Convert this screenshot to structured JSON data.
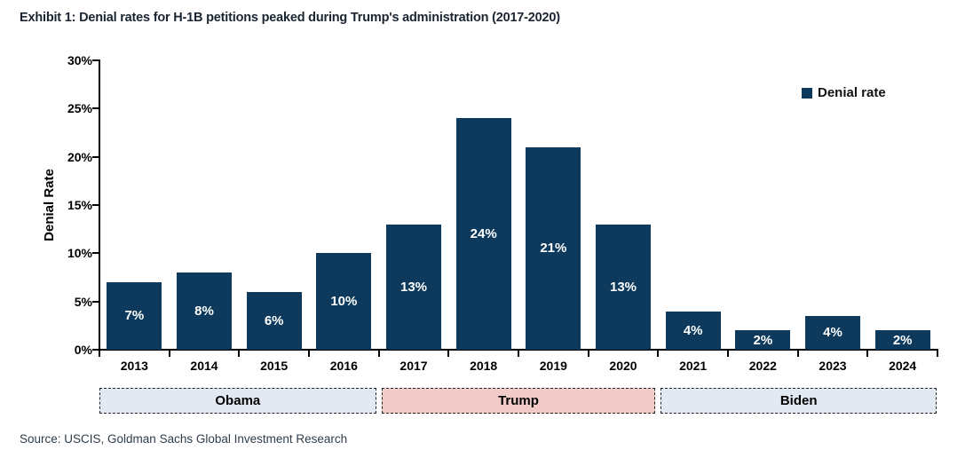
{
  "header": {
    "title": "Exhibit 1: Denial rates for H-1B petitions peaked during Trump's administration (2017-2020)"
  },
  "legend": {
    "label": "Denial rate",
    "marker_color": "#0d3a5c"
  },
  "chart_data": {
    "type": "bar",
    "title": "Exhibit 1: Denial rates for H-1B petitions peaked during Trump's administration (2017-2020)",
    "categories": [
      "2013",
      "2014",
      "2015",
      "2016",
      "2017",
      "2018",
      "2019",
      "2020",
      "2021",
      "2022",
      "2023",
      "2024"
    ],
    "values": [
      7,
      8,
      6,
      10,
      13,
      24,
      21,
      13,
      4,
      2,
      3.5,
      2
    ],
    "bar_labels": [
      "7%",
      "8%",
      "6%",
      "10%",
      "13%",
      "24%",
      "21%",
      "13%",
      "4%",
      "2%",
      "4%",
      "2%"
    ],
    "xlabel": "",
    "ylabel": "Denial Rate",
    "ylim": [
      0,
      30
    ],
    "yticks": [
      0,
      5,
      10,
      15,
      20,
      25,
      30
    ],
    "ytick_labels": [
      "0%",
      "5%",
      "10%",
      "15%",
      "20%",
      "25%",
      "30%"
    ],
    "grid": false,
    "legend_entries": [
      "Denial rate"
    ],
    "legend_position": "top-right",
    "bar_color": "#0d3a5c",
    "bar_label_color": "#ffffff"
  },
  "administrations": [
    {
      "label": "Obama",
      "fill": "#e2e9f3",
      "span": [
        0,
        3
      ]
    },
    {
      "label": "Trump",
      "fill": "#f2cbc9",
      "span": [
        4,
        7
      ]
    },
    {
      "label": "Biden",
      "fill": "#e2e9f3",
      "span": [
        8,
        11
      ]
    }
  ],
  "source": "Source: USCIS, Goldman Sachs Global Investment Research"
}
